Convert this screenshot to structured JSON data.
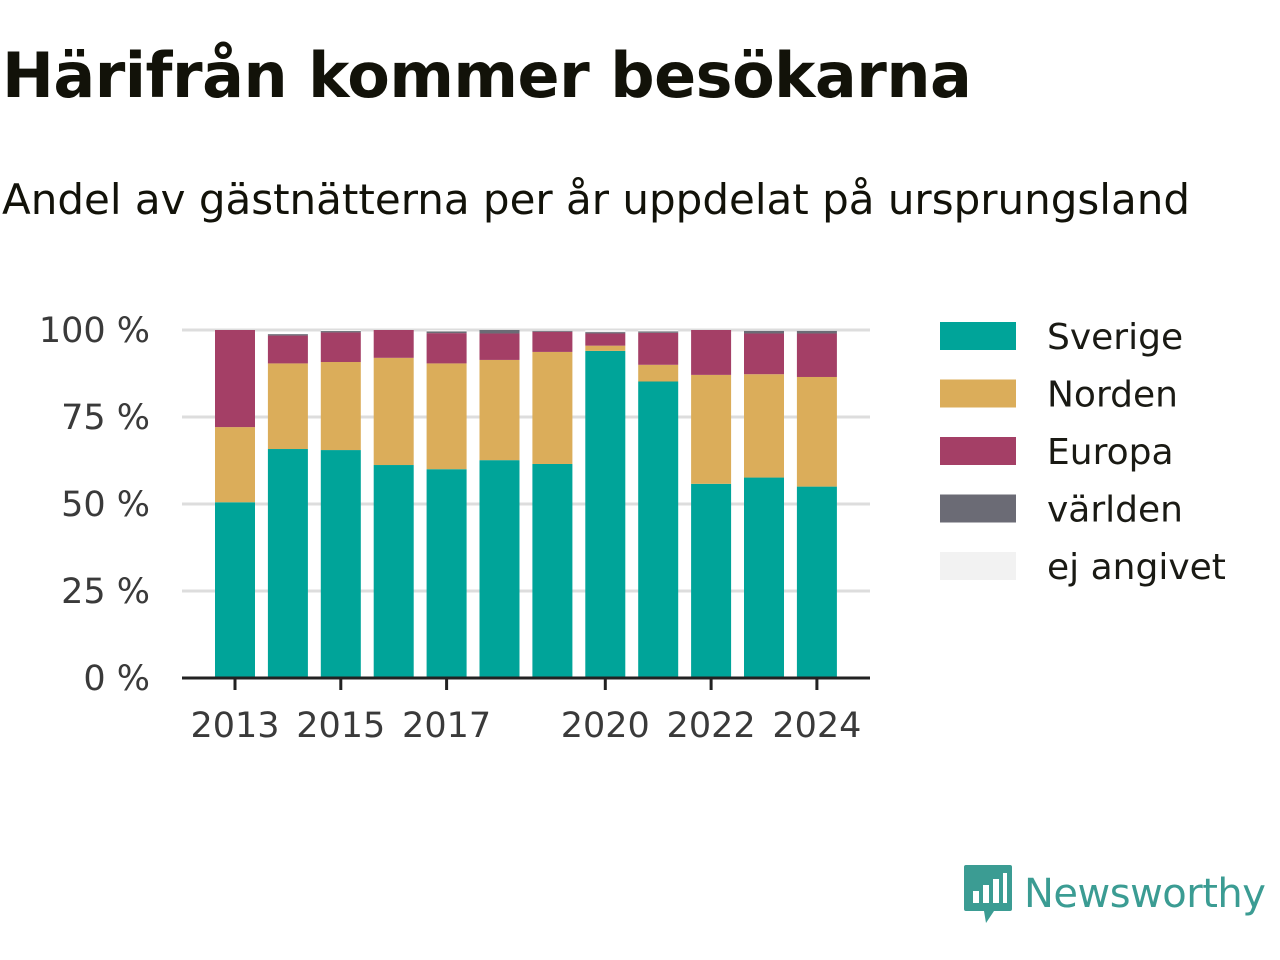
{
  "title": "Härifrån kommer besökarna",
  "subtitle": "Andel av gästnätterna per år uppdelat på ursprungsland",
  "brand": {
    "name": "Newsworthy",
    "icon": "newsworthy-logo-icon",
    "color": "#3b9c93"
  },
  "chart_data": {
    "type": "bar",
    "stacked": true,
    "categories": [
      "2013",
      "2014",
      "2015",
      "2016",
      "2017",
      "2018",
      "2019",
      "2020",
      "2021",
      "2022",
      "2023",
      "2024"
    ],
    "x_tick_labels": [
      "2013",
      "",
      "2015",
      "",
      "2017",
      "",
      "",
      "2020",
      "",
      "2022",
      "",
      "2024"
    ],
    "ylim": [
      0,
      100
    ],
    "y_ticks": [
      0,
      25,
      50,
      75,
      100
    ],
    "y_tick_labels": [
      "0 %",
      "25 %",
      "50 %",
      "75 %",
      "100 %"
    ],
    "grid": true,
    "legend_position": "right",
    "series": [
      {
        "name": "Sverige",
        "color": "#00a499",
        "values": [
          50.5,
          65.8,
          65.5,
          61.2,
          60,
          62.6,
          61.5,
          94,
          85.2,
          55.8,
          57.6,
          55
        ]
      },
      {
        "name": "Norden",
        "color": "#dbad5a",
        "values": [
          21.6,
          24.6,
          25.3,
          30.8,
          30.4,
          28.8,
          32.2,
          1.5,
          4.8,
          31.3,
          29.7,
          31.5
        ]
      },
      {
        "name": "Europa",
        "color": "#a43f66",
        "values": [
          27.9,
          8,
          8.5,
          8,
          8.7,
          7.6,
          5.8,
          3.5,
          9.2,
          12.9,
          11.7,
          12.5
        ]
      },
      {
        "name": "världen",
        "color": "#6b6b75",
        "values": [
          0,
          0.4,
          0.4,
          0,
          0.5,
          1,
          0.3,
          0.4,
          0.4,
          0,
          0.8,
          0.8
        ]
      },
      {
        "name": "ej angivet",
        "color": "#f2f2f2",
        "values": [
          0,
          0,
          0.3,
          0,
          0.4,
          0,
          0.2,
          0.6,
          0.4,
          0,
          0.2,
          0.2
        ]
      }
    ]
  }
}
